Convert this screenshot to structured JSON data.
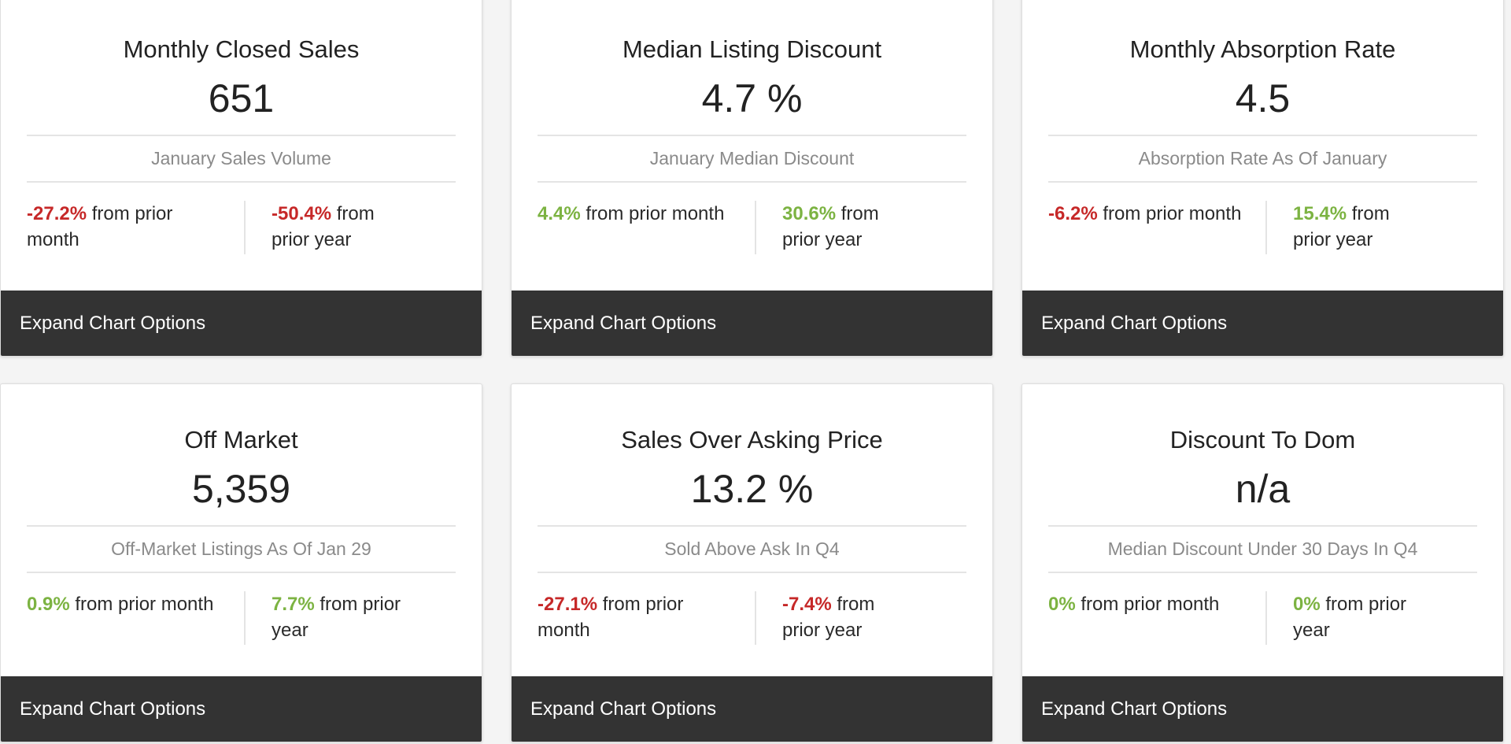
{
  "cards": [
    {
      "title": "Monthly Closed Sales",
      "value": "651",
      "subtitle": "January Sales Volume",
      "stat_left": {
        "pct": "-27.2%",
        "text": " from prior month",
        "trend": "neg"
      },
      "stat_right": {
        "pct": "-50.4%",
        "text": " from prior year",
        "trend": "neg"
      },
      "footer": "Expand Chart Options"
    },
    {
      "title": "Median Listing Discount",
      "value": "4.7 %",
      "subtitle": "January Median Discount",
      "stat_left": {
        "pct": "4.4%",
        "text": " from prior month",
        "trend": "pos"
      },
      "stat_right": {
        "pct": "30.6%",
        "text": " from prior year",
        "trend": "pos"
      },
      "footer": "Expand Chart Options"
    },
    {
      "title": "Monthly Absorption Rate",
      "value": "4.5",
      "subtitle": "Absorption Rate As Of January",
      "stat_left": {
        "pct": "-6.2%",
        "text": " from prior month",
        "trend": "neg"
      },
      "stat_right": {
        "pct": "15.4%",
        "text": " from prior year",
        "trend": "pos"
      },
      "footer": "Expand Chart Options"
    },
    {
      "title": "Off Market",
      "value": "5,359",
      "subtitle": "Off-Market Listings As Of Jan 29",
      "stat_left": {
        "pct": "0.9%",
        "text": " from prior month",
        "trend": "pos"
      },
      "stat_right": {
        "pct": "7.7%",
        "text": " from prior year",
        "trend": "pos"
      },
      "footer": "Expand Chart Options"
    },
    {
      "title": "Sales Over Asking Price",
      "value": "13.2 %",
      "subtitle": "Sold Above Ask In Q4",
      "stat_left": {
        "pct": "-27.1%",
        "text": " from prior month",
        "trend": "neg"
      },
      "stat_right": {
        "pct": "-7.4%",
        "text": " from prior year",
        "trend": "neg"
      },
      "footer": "Expand Chart Options"
    },
    {
      "title": "Discount To Dom",
      "value": "n/a",
      "subtitle": "Median Discount Under 30 Days In Q4",
      "stat_left": {
        "pct": "0%",
        "text": " from prior month",
        "trend": "pos"
      },
      "stat_right": {
        "pct": "0%",
        "text": " from prior year",
        "trend": "pos"
      },
      "footer": "Expand Chart Options"
    }
  ],
  "colors": {
    "negative": "#c62828",
    "positive": "#7cb342",
    "footer_bg": "#333333"
  }
}
